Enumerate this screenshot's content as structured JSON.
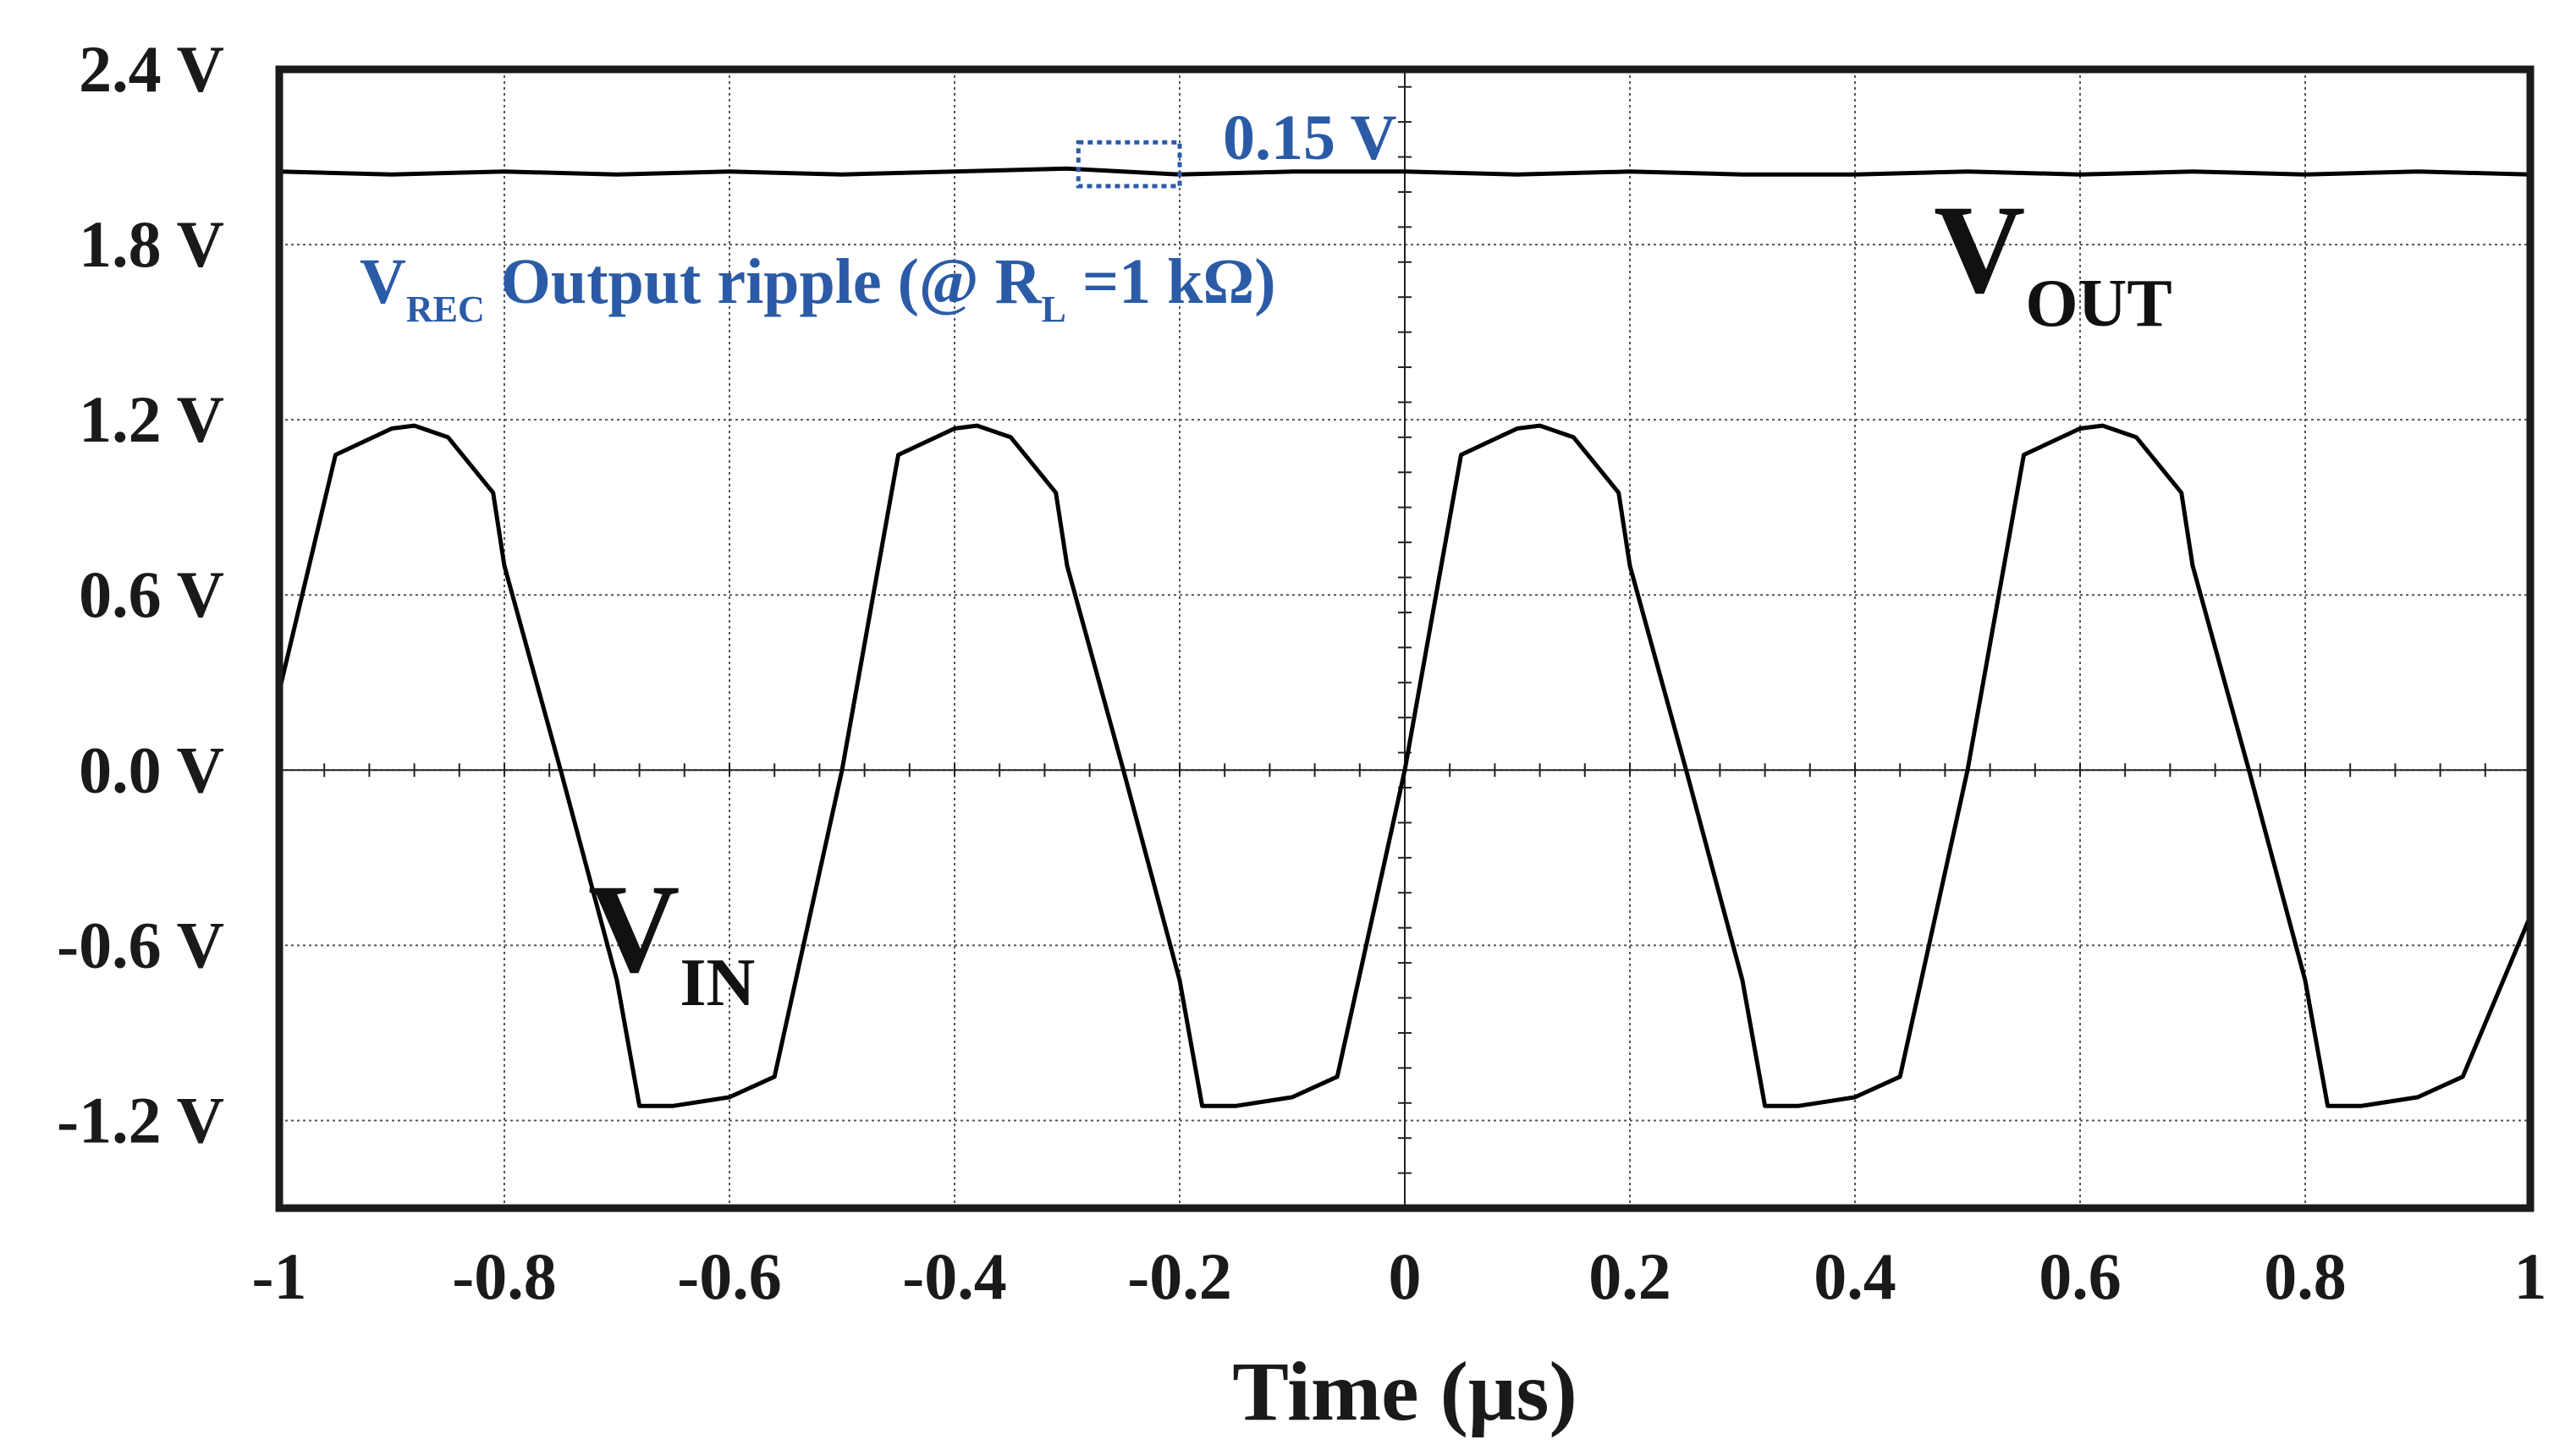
{
  "chart_data": {
    "type": "line",
    "xlabel": "Time (μs)",
    "ylabel": "",
    "xlim": [
      -1,
      1
    ],
    "ylim": [
      -1.5,
      2.4
    ],
    "x_ticks": [
      "-1",
      "-0.8",
      "-0.6",
      "-0.4",
      "-0.2",
      "0",
      "0.2",
      "0.4",
      "0.6",
      "0.8",
      "1"
    ],
    "y_ticks": [
      {
        "value": 2.4,
        "label": "2.4 V"
      },
      {
        "value": 1.8,
        "label": "1.8 V"
      },
      {
        "value": 1.2,
        "label": "1.2 V"
      },
      {
        "value": 0.6,
        "label": "0.6 V"
      },
      {
        "value": 0.0,
        "label": "0.0 V"
      },
      {
        "value": -0.6,
        "label": "-0.6 V"
      },
      {
        "value": -1.2,
        "label": "-1.2 V"
      }
    ],
    "grid": true,
    "series": [
      {
        "label_main": "V",
        "label_sub": "IN",
        "color": "#000000",
        "period_us": 0.5,
        "amplitude_v": 1.18,
        "x": [
          -1.0,
          -0.95,
          -0.9,
          -0.88,
          -0.85,
          -0.81,
          -0.8,
          -0.75,
          -0.7,
          -0.68,
          -0.65,
          -0.6,
          -0.56,
          -0.5,
          -0.45,
          -0.4,
          -0.38,
          -0.35,
          -0.31,
          -0.3,
          -0.25,
          -0.2,
          -0.18,
          -0.15,
          -0.1,
          -0.06,
          0.0,
          0.05,
          0.1,
          0.12,
          0.15,
          0.19,
          0.2,
          0.25,
          0.3,
          0.32,
          0.35,
          0.4,
          0.44,
          0.5,
          0.55,
          0.6,
          0.62,
          0.65,
          0.69,
          0.7,
          0.75,
          0.8,
          0.82,
          0.85,
          0.9,
          0.94,
          1.0
        ],
        "y": [
          0.27,
          1.08,
          1.17,
          1.18,
          1.14,
          0.95,
          0.7,
          0.0,
          -0.72,
          -1.15,
          -1.15,
          -1.12,
          -1.05,
          0.0,
          1.08,
          1.17,
          1.18,
          1.14,
          0.95,
          0.7,
          0.0,
          -0.72,
          -1.15,
          -1.15,
          -1.12,
          -1.05,
          0.0,
          1.08,
          1.17,
          1.18,
          1.14,
          0.95,
          0.7,
          0.0,
          -0.72,
          -1.15,
          -1.15,
          -1.12,
          -1.05,
          0.0,
          1.08,
          1.17,
          1.18,
          1.14,
          0.95,
          0.7,
          0.0,
          -0.72,
          -1.15,
          -1.15,
          -1.12,
          -1.05,
          -0.5
        ]
      },
      {
        "label_main": "V",
        "label_sub": "OUT",
        "color": "#000000",
        "x": [
          -1.0,
          -0.9,
          -0.8,
          -0.7,
          -0.6,
          -0.5,
          -0.4,
          -0.3,
          -0.2,
          -0.1,
          0.0,
          0.1,
          0.2,
          0.3,
          0.4,
          0.5,
          0.6,
          0.7,
          0.8,
          0.9,
          1.0
        ],
        "y": [
          2.05,
          2.04,
          2.05,
          2.04,
          2.05,
          2.04,
          2.05,
          2.06,
          2.04,
          2.05,
          2.05,
          2.04,
          2.05,
          2.04,
          2.04,
          2.05,
          2.04,
          2.05,
          2.04,
          2.05,
          2.04
        ]
      }
    ],
    "annotations": {
      "ripple_value": "0.15 V",
      "ripple_box_x": [
        -0.29,
        -0.2
      ],
      "ripple_box_y": [
        2.0,
        2.15
      ],
      "ripple_color": "#2b5ba6",
      "desc_main": "V",
      "desc_sub": "REC",
      "desc_text": " Output ripple (@ R",
      "desc_sub2": "L",
      "desc_tail": " =1 kΩ)"
    }
  }
}
